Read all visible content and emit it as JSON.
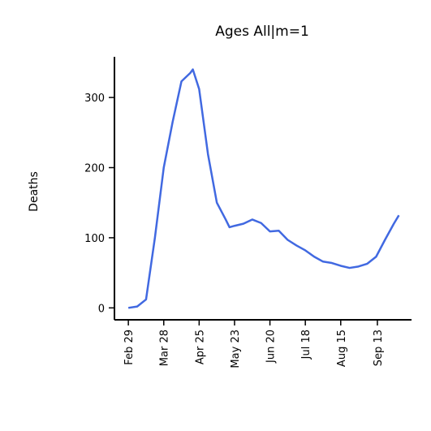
{
  "chart_data": {
    "type": "line",
    "title": "Ages All|m=1",
    "ylabel": "Deaths",
    "x": [
      0,
      7,
      14,
      21,
      28,
      35,
      42,
      49,
      51,
      56,
      63,
      70,
      77,
      80,
      84,
      91,
      98,
      105,
      112,
      119,
      126,
      133,
      140,
      147,
      154,
      161,
      168,
      175,
      182,
      189,
      196,
      203,
      210,
      214
    ],
    "series": [
      {
        "name": "Deaths",
        "color": "#4169e1",
        "values": [
          0,
          2,
          12,
          100,
          200,
          265,
          323,
          335,
          340,
          312,
          219,
          150,
          126,
          115,
          117,
          120,
          126,
          121,
          109,
          110,
          97,
          89,
          82,
          73,
          66,
          64,
          60,
          57,
          59,
          63,
          73,
          97,
          120,
          132
        ]
      }
    ],
    "xlim": [
      -11,
      224
    ],
    "ylim": [
      -17,
      358
    ],
    "xticks": [
      {
        "value": 0,
        "label": "Feb 29"
      },
      {
        "value": 28,
        "label": "Mar 28"
      },
      {
        "value": 56,
        "label": "Apr 25"
      },
      {
        "value": 84,
        "label": "May 23"
      },
      {
        "value": 112,
        "label": "Jun 20"
      },
      {
        "value": 140,
        "label": "Jul 18"
      },
      {
        "value": 168,
        "label": "Aug 15"
      },
      {
        "value": 197,
        "label": "Sep 13"
      }
    ],
    "yticks": [
      0,
      100,
      200,
      300
    ]
  }
}
